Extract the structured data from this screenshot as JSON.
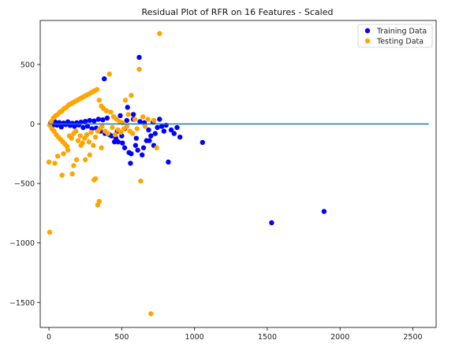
{
  "chart_data": {
    "type": "scatter",
    "title": "Residual Plot of RFR on 16 Features - Scaled",
    "xlabel": "",
    "ylabel": "",
    "xlim": [
      -60,
      2660
    ],
    "ylim": [
      -1710,
      870
    ],
    "x_ticks": [
      0,
      500,
      1000,
      1500,
      2000,
      2500
    ],
    "y_ticks": [
      500,
      0,
      -500,
      -1000,
      -1500
    ],
    "grid": false,
    "legend_position": "top-right",
    "hline": {
      "y": 0,
      "xmin": 0,
      "xmax": 2610,
      "color": "#1f77b4"
    },
    "series": [
      {
        "name": "Training Data",
        "color": "#0000ff",
        "points": [
          [
            10,
            5
          ],
          [
            25,
            -15
          ],
          [
            40,
            20
          ],
          [
            55,
            -10
          ],
          [
            70,
            12
          ],
          [
            85,
            -25
          ],
          [
            100,
            8
          ],
          [
            115,
            -5
          ],
          [
            130,
            18
          ],
          [
            145,
            -12
          ],
          [
            160,
            6
          ],
          [
            175,
            -20
          ],
          [
            190,
            10
          ],
          [
            205,
            -8
          ],
          [
            220,
            15
          ],
          [
            235,
            -30
          ],
          [
            250,
            22
          ],
          [
            265,
            -18
          ],
          [
            280,
            30
          ],
          [
            295,
            -40
          ],
          [
            310,
            25
          ],
          [
            325,
            -35
          ],
          [
            340,
            40
          ],
          [
            355,
            -60
          ],
          [
            370,
            35
          ],
          [
            385,
            -80
          ],
          [
            400,
            50
          ],
          [
            415,
            -90
          ],
          [
            430,
            -100
          ],
          [
            445,
            60
          ],
          [
            460,
            -120
          ],
          [
            475,
            -150
          ],
          [
            490,
            70
          ],
          [
            505,
            -160
          ],
          [
            520,
            -200
          ],
          [
            535,
            30
          ],
          [
            550,
            -240
          ],
          [
            565,
            -250
          ],
          [
            580,
            40
          ],
          [
            595,
            -180
          ],
          [
            610,
            -220
          ],
          [
            625,
            20
          ],
          [
            640,
            -260
          ],
          [
            655,
            10
          ],
          [
            670,
            -140
          ],
          [
            685,
            -50
          ],
          [
            700,
            -100
          ],
          [
            715,
            15
          ],
          [
            730,
            -80
          ],
          [
            745,
            -30
          ],
          [
            760,
            40
          ],
          [
            775,
            -20
          ],
          [
            790,
            -60
          ],
          [
            805,
            -10
          ],
          [
            820,
            -320
          ],
          [
            840,
            -50
          ],
          [
            860,
            -80
          ],
          [
            880,
            -30
          ],
          [
            900,
            -110
          ],
          [
            380,
            380
          ],
          [
            560,
            -330
          ],
          [
            620,
            560
          ],
          [
            540,
            140
          ],
          [
            580,
            80
          ],
          [
            600,
            -120
          ],
          [
            650,
            -200
          ],
          [
            690,
            -140
          ],
          [
            720,
            -180
          ],
          [
            500,
            -100
          ],
          [
            470,
            -60
          ],
          [
            450,
            -150
          ],
          [
            520,
            -40
          ],
          [
            1055,
            -155
          ],
          [
            1530,
            -830
          ],
          [
            1890,
            -735
          ]
        ]
      },
      {
        "name": "Testing Data",
        "color": "#ffa500",
        "points": [
          [
            5,
            -10
          ],
          [
            15,
            20
          ],
          [
            20,
            -40
          ],
          [
            30,
            50
          ],
          [
            35,
            -60
          ],
          [
            45,
            70
          ],
          [
            50,
            -90
          ],
          [
            60,
            80
          ],
          [
            65,
            -110
          ],
          [
            75,
            100
          ],
          [
            80,
            -130
          ],
          [
            90,
            110
          ],
          [
            95,
            -150
          ],
          [
            105,
            130
          ],
          [
            110,
            -170
          ],
          [
            120,
            140
          ],
          [
            125,
            -190
          ],
          [
            135,
            160
          ],
          [
            140,
            -100
          ],
          [
            150,
            170
          ],
          [
            155,
            -120
          ],
          [
            165,
            180
          ],
          [
            170,
            -80
          ],
          [
            180,
            190
          ],
          [
            185,
            -60
          ],
          [
            195,
            200
          ],
          [
            200,
            -140
          ],
          [
            210,
            210
          ],
          [
            215,
            -100
          ],
          [
            225,
            220
          ],
          [
            230,
            -160
          ],
          [
            240,
            230
          ],
          [
            245,
            -120
          ],
          [
            255,
            240
          ],
          [
            260,
            -90
          ],
          [
            270,
            250
          ],
          [
            275,
            -150
          ],
          [
            285,
            260
          ],
          [
            290,
            -70
          ],
          [
            300,
            270
          ],
          [
            305,
            -180
          ],
          [
            315,
            280
          ],
          [
            320,
            -110
          ],
          [
            330,
            290
          ],
          [
            335,
            -60
          ],
          [
            345,
            200
          ],
          [
            350,
            -40
          ],
          [
            360,
            150
          ],
          [
            365,
            -20
          ],
          [
            375,
            130
          ],
          [
            385,
            -60
          ],
          [
            395,
            110
          ],
          [
            405,
            -80
          ],
          [
            415,
            420
          ],
          [
            425,
            100
          ],
          [
            435,
            -30
          ],
          [
            445,
            60
          ],
          [
            455,
            -90
          ],
          [
            465,
            40
          ],
          [
            475,
            -50
          ],
          [
            485,
            20
          ],
          [
            495,
            -70
          ],
          [
            505,
            10
          ],
          [
            515,
            -40
          ],
          [
            525,
            200
          ],
          [
            535,
            -20
          ],
          [
            545,
            80
          ],
          [
            555,
            -60
          ],
          [
            565,
            240
          ],
          [
            575,
            -80
          ],
          [
            590,
            40
          ],
          [
            605,
            -40
          ],
          [
            620,
            460
          ],
          [
            630,
            -480
          ],
          [
            645,
            60
          ],
          [
            660,
            -20
          ],
          [
            680,
            40
          ],
          [
            700,
            -1595
          ],
          [
            720,
            30
          ],
          [
            740,
            -200
          ],
          [
            760,
            760
          ],
          [
            5,
            -910
          ],
          [
            0,
            -320
          ],
          [
            40,
            -330
          ],
          [
            90,
            -430
          ],
          [
            160,
            -420
          ],
          [
            310,
            -470
          ],
          [
            320,
            -460
          ],
          [
            335,
            -680
          ],
          [
            345,
            -650
          ],
          [
            190,
            -300
          ],
          [
            100,
            -250
          ],
          [
            60,
            -270
          ],
          [
            250,
            -300
          ],
          [
            130,
            -220
          ],
          [
            220,
            -180
          ],
          [
            170,
            -350
          ],
          [
            360,
            -200
          ],
          [
            280,
            -260
          ]
        ]
      }
    ]
  }
}
